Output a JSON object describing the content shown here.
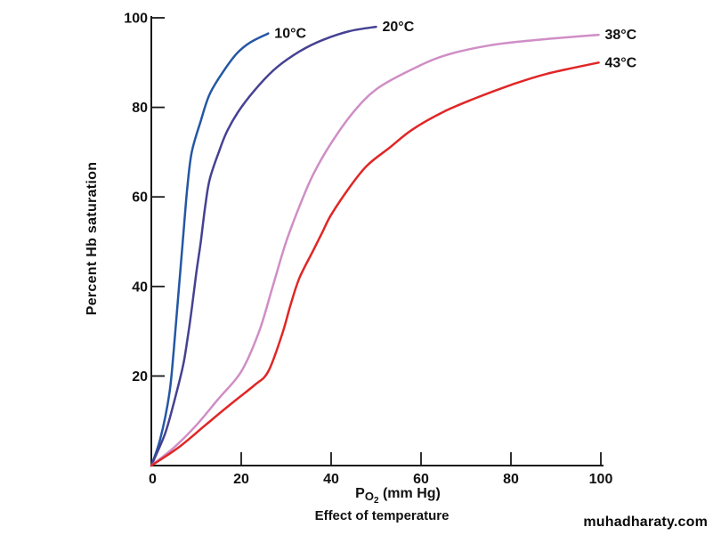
{
  "page": {
    "watermark": "muhadharaty.com"
  },
  "chart_data": {
    "type": "line",
    "title": "",
    "xlabel": "PO2 (mm Hg)",
    "xlabel_parts": {
      "p": "P",
      "o": "O",
      "two": "2",
      "unit": " (mm Hg)"
    },
    "ylabel": "Percent Hb saturation",
    "caption": "Effect of temperature",
    "xlim": [
      0,
      100
    ],
    "ylim": [
      0,
      100
    ],
    "x_ticks": [
      0,
      20,
      40,
      60,
      80,
      100
    ],
    "y_ticks": [
      20,
      40,
      60,
      80,
      100
    ],
    "grid": false,
    "legend_position": "end-of-curve",
    "axis_color": "#1a1a1a",
    "tick_label_color": "#111111",
    "series": [
      {
        "name": "10°C",
        "color": "#2457a4",
        "points": [
          [
            0,
            0
          ],
          [
            2,
            6
          ],
          [
            4,
            16
          ],
          [
            5,
            26
          ],
          [
            6,
            38
          ],
          [
            7,
            50
          ],
          [
            8,
            62
          ],
          [
            9,
            70
          ],
          [
            11,
            77
          ],
          [
            13,
            83
          ],
          [
            16,
            88
          ],
          [
            19,
            92
          ],
          [
            22,
            94.5
          ],
          [
            26,
            96.5
          ]
        ]
      },
      {
        "name": "20°C",
        "color": "#454192",
        "points": [
          [
            0,
            0
          ],
          [
            3,
            7
          ],
          [
            5,
            14
          ],
          [
            7,
            22
          ],
          [
            8,
            28
          ],
          [
            9,
            35
          ],
          [
            10,
            43
          ],
          [
            11,
            50
          ],
          [
            12,
            58
          ],
          [
            13,
            64
          ],
          [
            15,
            70
          ],
          [
            17,
            75
          ],
          [
            20,
            80
          ],
          [
            24,
            85
          ],
          [
            28,
            89
          ],
          [
            33,
            92.5
          ],
          [
            38,
            95
          ],
          [
            44,
            97
          ],
          [
            50,
            98
          ]
        ]
      },
      {
        "name": "38°C",
        "color": "#cf8ec6",
        "points": [
          [
            0,
            0
          ],
          [
            5,
            4
          ],
          [
            10,
            9
          ],
          [
            15,
            15
          ],
          [
            20,
            21
          ],
          [
            24,
            30
          ],
          [
            27,
            40
          ],
          [
            30,
            50
          ],
          [
            33,
            58
          ],
          [
            36,
            65
          ],
          [
            40,
            72
          ],
          [
            45,
            79
          ],
          [
            50,
            84
          ],
          [
            57,
            88
          ],
          [
            65,
            91.5
          ],
          [
            75,
            93.8
          ],
          [
            85,
            95
          ],
          [
            99.5,
            96.2
          ]
        ]
      },
      {
        "name": "43°C",
        "color": "#e02626",
        "points": [
          [
            0,
            0
          ],
          [
            6,
            4
          ],
          [
            12,
            9
          ],
          [
            18,
            14
          ],
          [
            23,
            18
          ],
          [
            26,
            21
          ],
          [
            29,
            29
          ],
          [
            31,
            36
          ],
          [
            33,
            42
          ],
          [
            36,
            48
          ],
          [
            38,
            52
          ],
          [
            40,
            56
          ],
          [
            44,
            62
          ],
          [
            48,
            67
          ],
          [
            53,
            71
          ],
          [
            58,
            75
          ],
          [
            65,
            79
          ],
          [
            72,
            82
          ],
          [
            80,
            85
          ],
          [
            88,
            87.5
          ],
          [
            99.5,
            90
          ]
        ]
      }
    ]
  }
}
